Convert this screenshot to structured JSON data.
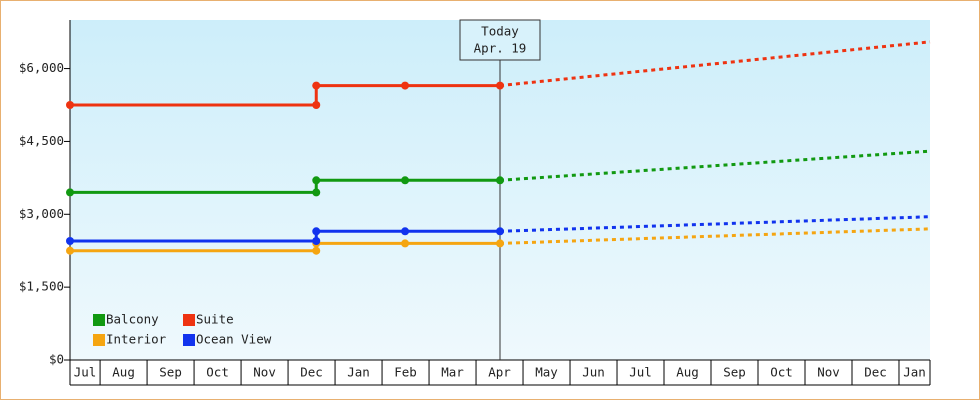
{
  "chart_data": {
    "type": "step-line",
    "categories": [
      "Jul",
      "Aug",
      "Sep",
      "Oct",
      "Nov",
      "Dec",
      "Jan",
      "Feb",
      "Mar",
      "Apr",
      "May",
      "Jun",
      "Jul",
      "Aug",
      "Sep",
      "Oct",
      "Nov",
      "Dec",
      "Jan"
    ],
    "xlim": [
      0.36,
      18.66
    ],
    "ylim": [
      0,
      7000
    ],
    "yticks": [
      {
        "value": 0,
        "label": "$0"
      },
      {
        "value": 1500,
        "label": "$1,500"
      },
      {
        "value": 3000,
        "label": "$3,000"
      },
      {
        "value": 4500,
        "label": "$4,500"
      },
      {
        "value": 6000,
        "label": "$6,000"
      }
    ],
    "annotation": {
      "x": 9.51,
      "lines": [
        "Today",
        "Apr. 19"
      ]
    },
    "legend": "bottom-left",
    "series": [
      {
        "name": "Balcony",
        "color": "#119911",
        "x": [
          0.36,
          5.6,
          5.6,
          7.49,
          9.51
        ],
        "values": [
          3450,
          3450,
          3700,
          3700,
          3700
        ],
        "projection": {
          "x": [
            9.51,
            18.66
          ],
          "values": [
            3700,
            4300
          ]
        }
      },
      {
        "name": "Suite",
        "color": "#ee3311",
        "x": [
          0.36,
          5.6,
          5.6,
          7.49,
          9.51
        ],
        "values": [
          5250,
          5250,
          5650,
          5650,
          5650
        ],
        "projection": {
          "x": [
            9.51,
            18.66
          ],
          "values": [
            5650,
            6550
          ]
        }
      },
      {
        "name": "Interior",
        "color": "#f5a511",
        "x": [
          0.36,
          5.6,
          5.6,
          7.49,
          9.51
        ],
        "values": [
          2250,
          2250,
          2400,
          2400,
          2400
        ],
        "projection": {
          "x": [
            9.51,
            18.66
          ],
          "values": [
            2400,
            2700
          ]
        }
      },
      {
        "name": "Ocean View",
        "color": "#1133ee",
        "x": [
          0.36,
          5.6,
          5.6,
          7.49,
          9.51
        ],
        "values": [
          2450,
          2450,
          2650,
          2650,
          2650
        ],
        "projection": {
          "x": [
            9.51,
            18.66
          ],
          "values": [
            2650,
            2950
          ]
        }
      }
    ]
  }
}
